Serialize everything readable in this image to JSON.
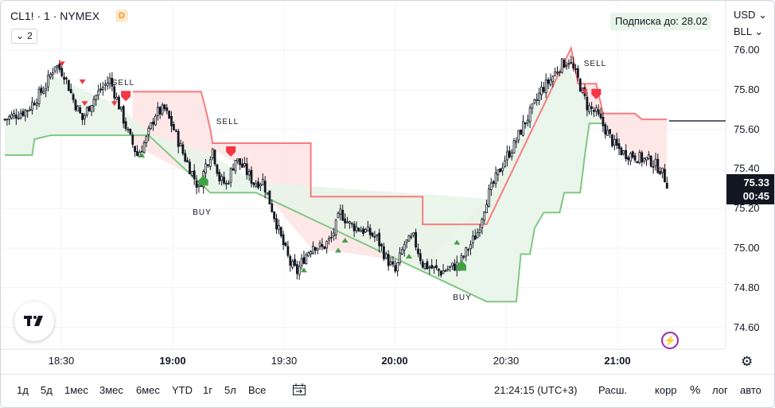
{
  "symbol": {
    "legend": "CL1! · 1 · NYMEX",
    "badge": "D",
    "collapse_count": "2"
  },
  "subscription": "Подписка до: 28.02",
  "currency_label": "USD",
  "unit_label": "BLL",
  "price_axis": {
    "ticks": [
      "76.00",
      "75.80",
      "75.60",
      "75.40",
      "75.20",
      "75.00",
      "74.80",
      "74.60"
    ]
  },
  "last_price": {
    "value": "75.33",
    "countdown": "00:45"
  },
  "time_axis": {
    "ticks": [
      {
        "label": "18:30",
        "bold": false
      },
      {
        "label": "19:00",
        "bold": true
      },
      {
        "label": "19:30",
        "bold": false
      },
      {
        "label": "20:00",
        "bold": true
      },
      {
        "label": "20:30",
        "bold": false
      },
      {
        "label": "21:00",
        "bold": true
      }
    ]
  },
  "signals": [
    {
      "label": "SELL",
      "type": "sell"
    },
    {
      "label": "SELL",
      "type": "sell"
    },
    {
      "label": "BUY",
      "type": "buy"
    },
    {
      "label": "BUY",
      "type": "buy"
    },
    {
      "label": "SELL",
      "type": "sell"
    }
  ],
  "bottom_toolbar": {
    "ranges": [
      "1д",
      "5д",
      "1мес",
      "3мес",
      "6мес",
      "YTD",
      "1г",
      "5л",
      "Все"
    ],
    "clock": "21:24:15 (UTC+3)",
    "session": "Расш.",
    "corr": "корр",
    "percent": "%",
    "log": "лог",
    "auto": "авто"
  },
  "colors": {
    "up_candle": "#131722",
    "down_candle": "#131722",
    "sell_line": "#f77c80",
    "buy_line": "#81c784",
    "sell_fill": "#fde3e3",
    "buy_fill": "#e6f4e7",
    "sell_marker": "#f23645",
    "buy_marker": "#43a047",
    "price_tag_bg": "#131722"
  },
  "chart_data": {
    "type": "candlestick",
    "title": "",
    "xlabel": "",
    "ylabel": "",
    "ylim": [
      74.5,
      76.1
    ],
    "x_ticks": [
      "18:30",
      "19:00",
      "19:30",
      "20:00",
      "20:30",
      "21:00"
    ],
    "y_ticks": [
      76.0,
      75.8,
      75.6,
      75.4,
      75.2,
      75.0,
      74.8,
      74.6
    ],
    "last_value": 75.33,
    "close_path": [
      [
        0,
        75.65
      ],
      [
        10,
        75.7
      ],
      [
        18,
        75.82
      ],
      [
        22,
        75.93
      ],
      [
        26,
        75.88
      ],
      [
        30,
        75.75
      ],
      [
        34,
        75.65
      ],
      [
        38,
        75.74
      ],
      [
        42,
        75.8
      ],
      [
        46,
        75.85
      ],
      [
        50,
        75.72
      ],
      [
        54,
        75.58
      ],
      [
        58,
        75.47
      ],
      [
        62,
        75.55
      ],
      [
        66,
        75.68
      ],
      [
        70,
        75.7
      ],
      [
        74,
        75.6
      ],
      [
        78,
        75.48
      ],
      [
        82,
        75.38
      ],
      [
        85,
        75.3
      ],
      [
        88,
        75.42
      ],
      [
        91,
        75.5
      ],
      [
        94,
        75.35
      ],
      [
        97,
        75.32
      ],
      [
        101,
        75.45
      ],
      [
        105,
        75.4
      ],
      [
        109,
        75.33
      ],
      [
        113,
        75.34
      ],
      [
        117,
        75.2
      ],
      [
        121,
        75.05
      ],
      [
        125,
        74.92
      ],
      [
        128,
        74.88
      ],
      [
        131,
        74.95
      ],
      [
        135,
        75.02
      ],
      [
        139,
        75.0
      ],
      [
        143,
        75.05
      ],
      [
        147,
        75.18
      ],
      [
        151,
        75.12
      ],
      [
        155,
        75.1
      ],
      [
        159,
        75.08
      ],
      [
        163,
        75.05
      ],
      [
        167,
        74.95
      ],
      [
        171,
        74.88
      ],
      [
        175,
        75.02
      ],
      [
        179,
        75.05
      ],
      [
        183,
        74.92
      ],
      [
        187,
        74.9
      ],
      [
        191,
        74.88
      ],
      [
        195,
        74.9
      ],
      [
        199,
        74.92
      ],
      [
        203,
        75.0
      ],
      [
        207,
        75.08
      ],
      [
        211,
        75.25
      ],
      [
        215,
        75.35
      ],
      [
        219,
        75.45
      ],
      [
        223,
        75.52
      ],
      [
        227,
        75.62
      ],
      [
        231,
        75.7
      ],
      [
        235,
        75.8
      ],
      [
        239,
        75.85
      ],
      [
        243,
        75.92
      ],
      [
        247,
        75.95
      ],
      [
        251,
        75.85
      ],
      [
        255,
        75.72
      ],
      [
        259,
        75.68
      ],
      [
        263,
        75.6
      ],
      [
        267,
        75.52
      ],
      [
        271,
        75.48
      ],
      [
        275,
        75.47
      ],
      [
        279,
        75.45
      ],
      [
        283,
        75.44
      ],
      [
        287,
        75.4
      ],
      [
        290,
        75.33
      ]
    ],
    "series": [
      {
        "name": "",
        "role": "sell_stop",
        "points": [
          [
            56,
            75.79
          ],
          [
            86,
            75.79
          ],
          [
            88,
            75.7
          ],
          [
            90,
            75.6
          ],
          [
            91,
            75.53
          ],
          [
            104,
            75.53
          ],
          [
            104,
            75.53
          ],
          [
            134,
            75.53
          ],
          [
            134,
            75.26
          ],
          [
            183,
            75.26
          ],
          [
            183,
            75.12
          ],
          [
            211,
            75.12
          ],
          [
            248,
            76.01
          ],
          [
            251,
            75.83
          ],
          [
            259,
            75.83
          ],
          [
            262,
            75.68
          ],
          [
            276,
            75.68
          ],
          [
            279,
            75.65
          ],
          [
            290,
            75.65
          ]
        ]
      },
      {
        "name": "",
        "role": "buy_stop",
        "points": [
          [
            0,
            75.47
          ],
          [
            12,
            75.47
          ],
          [
            13,
            75.55
          ],
          [
            20,
            75.57
          ],
          [
            50,
            75.57
          ],
          [
            50,
            75.57
          ],
          [
            63,
            75.57
          ],
          [
            90,
            75.28
          ],
          [
            110,
            75.28
          ],
          [
            211,
            74.73
          ],
          [
            224,
            74.73
          ],
          [
            226,
            74.97
          ],
          [
            230,
            74.97
          ],
          [
            232,
            75.1
          ],
          [
            236,
            75.18
          ],
          [
            243,
            75.18
          ],
          [
            245,
            75.28
          ],
          [
            252,
            75.28
          ],
          [
            254,
            75.47
          ],
          [
            256,
            75.63
          ],
          [
            262,
            75.63
          ]
        ]
      }
    ]
  }
}
